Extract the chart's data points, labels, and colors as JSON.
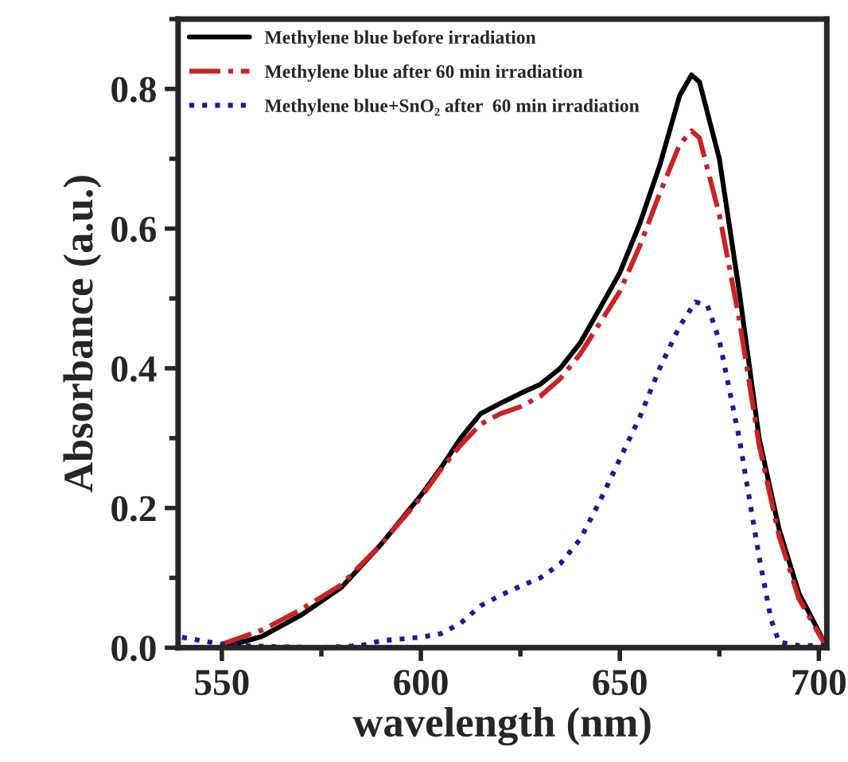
{
  "chart_data": {
    "type": "line",
    "xlabel": "wavelength (nm)",
    "ylabel": "Absorbance (a.u.)",
    "xlim": [
      539,
      702
    ],
    "xticks": [
      550,
      600,
      650,
      700
    ],
    "ylim": [
      0,
      0.9
    ],
    "yticks": [
      {
        "value": 0,
        "label": "0.0"
      },
      0.2,
      0.4,
      0.6,
      0.8
    ],
    "grid": false,
    "legend": "top left",
    "marker": "none",
    "series": [
      {
        "name": "Methylene blue before irradiation",
        "color": "#000000",
        "line_style": "solid",
        "x": [
          550,
          555,
          560,
          570,
          580,
          590,
          600,
          605,
          610,
          615,
          620,
          625,
          630,
          635,
          640,
          645,
          650,
          655,
          660,
          665,
          668,
          670,
          675,
          680,
          685,
          690,
          695,
          700,
          702
        ],
        "values": [
          0.0,
          0.008,
          0.016,
          0.047,
          0.086,
          0.148,
          0.218,
          0.257,
          0.3,
          0.335,
          0.35,
          0.364,
          0.377,
          0.4,
          0.436,
          0.486,
          0.537,
          0.607,
          0.69,
          0.79,
          0.82,
          0.81,
          0.7,
          0.51,
          0.3,
          0.17,
          0.078,
          0.023,
          0.0
        ]
      },
      {
        "name": "Methylene blue after 60 min irradiation",
        "color": "#cc2222",
        "line_style": "dashdot",
        "x": [
          550,
          555,
          560,
          570,
          580,
          590,
          600,
          605,
          610,
          615,
          620,
          625,
          630,
          635,
          640,
          645,
          650,
          655,
          660,
          665,
          668,
          670,
          675,
          680,
          685,
          690,
          695,
          700,
          702
        ],
        "values": [
          0.005,
          0.015,
          0.025,
          0.055,
          0.09,
          0.148,
          0.215,
          0.255,
          0.29,
          0.32,
          0.335,
          0.345,
          0.36,
          0.385,
          0.42,
          0.465,
          0.51,
          0.575,
          0.65,
          0.72,
          0.74,
          0.73,
          0.62,
          0.47,
          0.29,
          0.16,
          0.07,
          0.02,
          0.0
        ]
      },
      {
        "name": "Methylene blue+SnO₂ after  60 min irradiation",
        "color": "#1a1aa0",
        "line_style": "dotted",
        "x": [
          540,
          545,
          550,
          560,
          575,
          585,
          590,
          600,
          605,
          610,
          615,
          620,
          625,
          630,
          635,
          640,
          645,
          650,
          655,
          660,
          665,
          669,
          672,
          675,
          680,
          685,
          688,
          690,
          695,
          702
        ],
        "values": [
          0.015,
          0.01,
          0.005,
          0.002,
          0.0,
          0.003,
          0.01,
          0.015,
          0.02,
          0.035,
          0.06,
          0.075,
          0.088,
          0.1,
          0.12,
          0.155,
          0.21,
          0.27,
          0.33,
          0.4,
          0.46,
          0.495,
          0.49,
          0.44,
          0.3,
          0.13,
          0.04,
          0.008,
          0.003,
          0.003
        ]
      }
    ]
  }
}
